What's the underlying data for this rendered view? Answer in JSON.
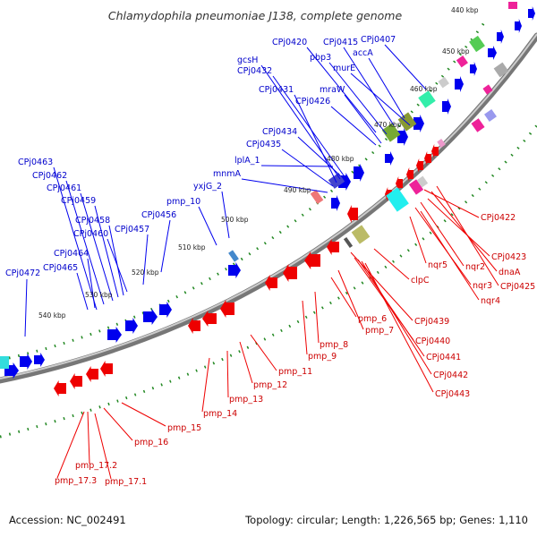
{
  "title": "Chlamydophila pneumoniae J138, complete genome",
  "footer": {
    "accession": "Accession: NC_002491",
    "summary": "Topology: circular; Length: 1,226,565 bp; Genes: 1,110"
  },
  "ticks": [
    {
      "label": "440 kbp"
    },
    {
      "label": "450 kbp"
    },
    {
      "label": "460 kbp"
    },
    {
      "label": "470 kbp"
    },
    {
      "label": "480 kbp"
    },
    {
      "label": "490 kbp"
    },
    {
      "label": "500 kbp"
    },
    {
      "label": "510 kbp"
    },
    {
      "label": "520 kbp"
    },
    {
      "label": "530 kbp"
    },
    {
      "label": "540 kbp"
    }
  ],
  "forward_labels": [
    "CPj0420",
    "CPj0415",
    "CPj0407",
    "pbp3",
    "accA",
    "gcsH",
    "murE",
    "CPj0432",
    "mraW",
    "CPj0431",
    "CPj0426",
    "CPj0434",
    "CPj0435",
    "lplA_1",
    "mnmA",
    "yxjG_2",
    "pmp_10",
    "CPj0463",
    "CPj0462",
    "CPj0461",
    "CPj0459",
    "CPj0456",
    "CPj0458",
    "CPj0460",
    "CPj0457",
    "CPj0464",
    "CPj0465",
    "CPj0472"
  ],
  "reverse_labels": [
    "CPj0422",
    "nqr5",
    "CPj0423",
    "nqr2",
    "dnaA",
    "nqr3",
    "CPj0425",
    "nqr4",
    "clpC",
    "pmp_6",
    "CPj0439",
    "pmp_7",
    "CPj0440",
    "pmp_8",
    "CPj0441",
    "pmp_9",
    "CPj0442",
    "pmp_11",
    "CPj0443",
    "pmp_12",
    "pmp_13",
    "pmp_14",
    "pmp_15",
    "pmp_16",
    "pmp_17.2",
    "pmp_17.3",
    "pmp_17.1"
  ],
  "colors": {
    "forward_gene": "#0000ee",
    "reverse_gene": "#ee0000",
    "backbone": "#777777",
    "tick_dots": "#228822"
  }
}
